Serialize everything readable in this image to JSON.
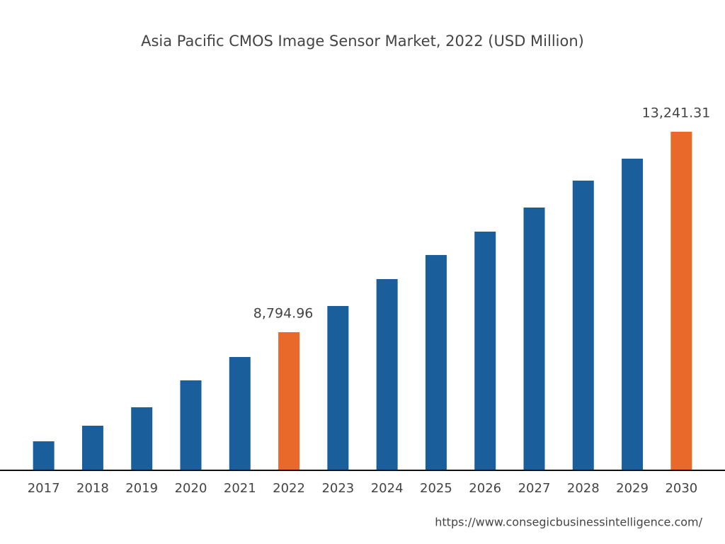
{
  "chart_data": {
    "type": "bar",
    "title": "Asia Pacific CMOS Image Sensor Market, 2022 (USD Million)",
    "categories": [
      "2017",
      "2018",
      "2019",
      "2020",
      "2021",
      "2022",
      "2023",
      "2024",
      "2025",
      "2026",
      "2027",
      "2028",
      "2029",
      "2030"
    ],
    "values": [
      6375,
      6721,
      7130,
      7727,
      8245,
      8794.96,
      9376,
      9973,
      10507,
      11026,
      11560,
      12157,
      12644,
      13241.31
    ],
    "value_labels": [
      null,
      null,
      null,
      null,
      null,
      "8,794.96",
      null,
      null,
      null,
      null,
      null,
      null,
      null,
      "13,241.31"
    ],
    "colors": [
      "#1a5f9c",
      "#1a5f9c",
      "#1a5f9c",
      "#1a5f9c",
      "#1a5f9c",
      "#e8692a",
      "#1a5f9c",
      "#1a5f9c",
      "#1a5f9c",
      "#1a5f9c",
      "#1a5f9c",
      "#1a5f9c",
      "#1a5f9c",
      "#e8692a"
    ],
    "ylim": [
      5747,
      14592
    ],
    "grid": false,
    "source": "https://www.consegicbusinessintelligence.com/"
  }
}
